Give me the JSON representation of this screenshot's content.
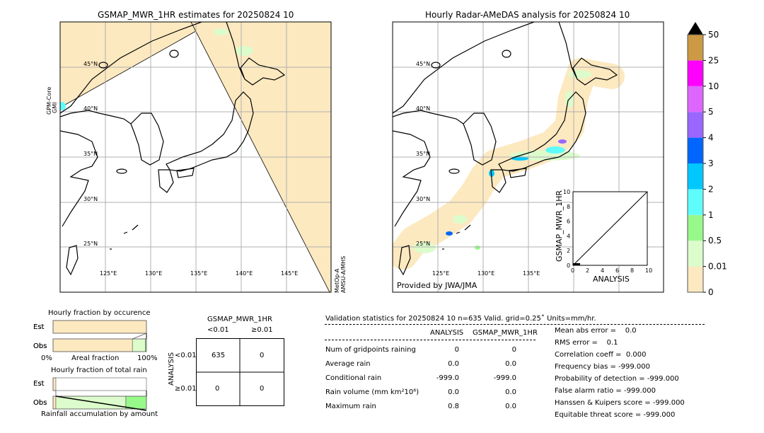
{
  "chart_data": [
    {
      "type": "heatmap",
      "title": "GSMAP_MWR_1HR estimates for 20250824 10",
      "lon_ticks": [
        "125°E",
        "130°E",
        "135°E",
        "140°E",
        "145°E"
      ],
      "lat_ticks": [
        "45°N",
        "40°N",
        "35°N",
        "30°N",
        "25°N"
      ],
      "sensor_labels": [
        "GPM-Core GMI",
        "MetOp-A AMSU-A/MHS"
      ]
    },
    {
      "type": "heatmap",
      "title": "Hourly Radar-AMeDAS analysis for 20250824 10",
      "lon_ticks": [
        "125°E",
        "130°E",
        "135°E"
      ],
      "lat_ticks": [
        "45°N",
        "40°N",
        "35°N",
        "30°N",
        "25°N"
      ],
      "credit": "Provided by JWA/JMA",
      "inset": {
        "type": "scatter",
        "xlabel": "ANALYSIS",
        "ylabel": "GSMAP_MWR_1HR",
        "xlim": [
          0,
          10
        ],
        "ylim": [
          0,
          10
        ],
        "ticks": [
          "0",
          "2",
          "4",
          "6",
          "8",
          "10"
        ]
      }
    },
    {
      "type": "bar",
      "title": "colorbar",
      "levels": [
        "0",
        "0.01",
        "0.5",
        "1",
        "2",
        "3",
        "4",
        "5",
        "10",
        "25",
        "50"
      ],
      "colors": [
        "#fde9c0",
        "#dcfccb",
        "#97f98a",
        "#5ffcfc",
        "#00c8ff",
        "#0066ff",
        "#9966ff",
        "#dd66ff",
        "#ff00ff",
        "#cc9944"
      ],
      "extend_color": "#000000"
    },
    {
      "type": "bar",
      "title": "Hourly fraction by occurence",
      "categories": [
        "Est",
        "Obs"
      ],
      "xlabel": "Areal fraction",
      "xticks": [
        "0%",
        "100%"
      ],
      "series": [
        {
          "category": "Est",
          "fractions": [
            1.0,
            0.0,
            0.0
          ]
        },
        {
          "category": "Obs",
          "fractions": [
            0.85,
            0.14,
            0.01
          ]
        }
      ]
    },
    {
      "type": "bar",
      "title": "Hourly fraction of total rain",
      "categories": [
        "Est",
        "Obs"
      ],
      "xlabel": "Rainfall accumulation by amount",
      "series": [
        {
          "category": "Est",
          "fractions": [
            0.03,
            0.0,
            0.0
          ]
        },
        {
          "category": "Obs",
          "fractions": [
            0.03,
            0.75,
            0.22
          ]
        }
      ]
    },
    {
      "type": "table",
      "title": "GSMAP_MWR_1HR",
      "col_headers": [
        "<0.01",
        "≥0.01"
      ],
      "row_axis": "ANALYSIS",
      "row_headers": [
        "<0.01",
        "≥0.01"
      ],
      "cells": [
        [
          "635",
          "0"
        ],
        [
          "0",
          "0"
        ]
      ]
    }
  ],
  "stats": {
    "header": "Validation statistics for 20250824 10  n=635 Valid. grid=0.25˚ Units=mm/hr.",
    "col1": "ANALYSIS",
    "col2": "GSMAP_MWR_1HR",
    "rows": [
      {
        "label": "Num of gridpoints raining",
        "a": "0",
        "b": "0"
      },
      {
        "label": "Average rain",
        "a": "0.0",
        "b": "0.0"
      },
      {
        "label": "Conditional rain",
        "a": "-999.0",
        "b": "-999.0"
      },
      {
        "label": "Rain volume (mm km²10⁶)",
        "a": "0.0",
        "b": "0.0"
      },
      {
        "label": "Maximum rain",
        "a": "0.8",
        "b": "0.0"
      }
    ],
    "scores": [
      "Mean abs error =    0.0",
      "RMS error =    0.1",
      "Correlation coeff =  0.000",
      "Frequency bias = -999.000",
      "Probability of detection = -999.000",
      "False alarm ratio = -999.000",
      "Hanssen & Kuipers score = -999.000",
      "Equitable threat score = -999.000"
    ]
  }
}
